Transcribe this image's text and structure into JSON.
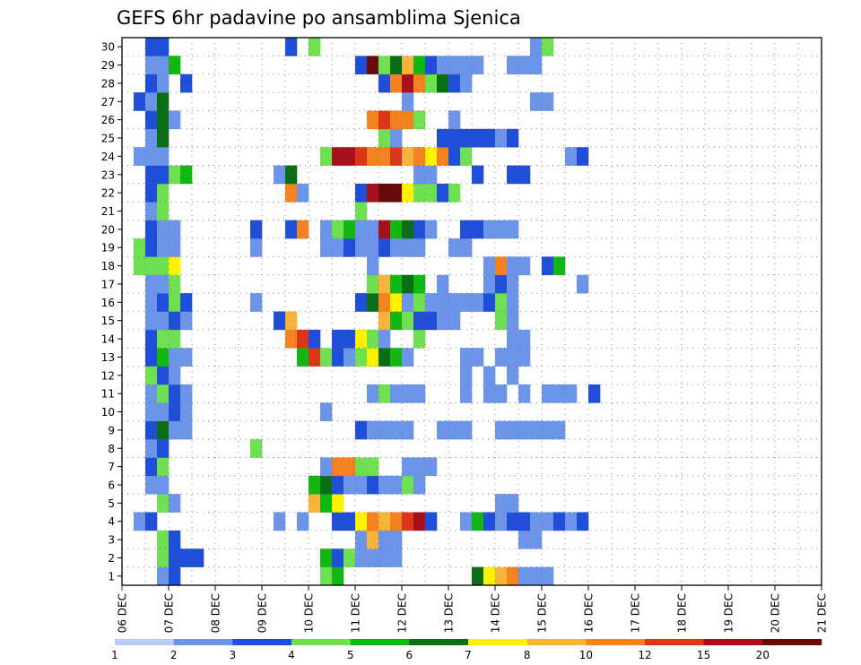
{
  "chart_data": {
    "type": "heatmap",
    "title": "GEFS 6hr padavine po ansamblima Sjenica",
    "xlabel": "",
    "ylabel": "",
    "x_ticks": [
      "06 DEC",
      "07 DEC",
      "08 DEC",
      "09 DEC",
      "10 DEC",
      "11 DEC",
      "12 DEC",
      "13 DEC",
      "14 DEC",
      "15 DEC",
      "16 DEC",
      "17 DEC",
      "18 DEC",
      "19 DEC",
      "20 DEC",
      "21 DEC"
    ],
    "y_ticks": [
      "1",
      "2",
      "3",
      "4",
      "5",
      "6",
      "7",
      "8",
      "9",
      "10",
      "11",
      "12",
      "13",
      "14",
      "15",
      "16",
      "17",
      "18",
      "19",
      "20",
      "21",
      "22",
      "23",
      "24",
      "25",
      "26",
      "27",
      "28",
      "29",
      "30"
    ],
    "x_range_days": [
      0,
      15
    ],
    "step_hours": 6,
    "grid": true,
    "colorbar": {
      "labels": [
        "1",
        "2",
        "3",
        "4",
        "5",
        "6",
        "7",
        "8",
        "10",
        "12",
        "15",
        "20"
      ],
      "colors": [
        "#bccdf5",
        "#6c95ea",
        "#1f4fd8",
        "#6fe052",
        "#12b812",
        "#0a6e14",
        "#fff200",
        "#f8b43a",
        "#f58220",
        "#dc3618",
        "#a80f1c",
        "#6a0a0a"
      ]
    },
    "cells": [
      [
        1,
        1,
        0
      ],
      [
        1,
        1,
        1
      ],
      [
        1,
        2,
        2
      ],
      [
        1,
        15,
        3
      ],
      [
        1,
        16,
        4
      ],
      [
        1,
        28,
        5
      ],
      [
        1,
        29,
        6
      ],
      [
        1,
        30,
        7
      ],
      [
        1,
        31,
        8
      ],
      [
        1,
        32,
        1
      ],
      [
        1,
        33,
        1
      ],
      [
        1,
        34,
        1
      ],
      [
        2,
        1,
        3
      ],
      [
        2,
        2,
        2
      ],
      [
        2,
        3,
        2
      ],
      [
        2,
        4,
        2
      ],
      [
        2,
        15,
        4
      ],
      [
        2,
        16,
        2
      ],
      [
        2,
        17,
        3
      ],
      [
        2,
        18,
        1
      ],
      [
        2,
        19,
        1
      ],
      [
        2,
        20,
        1
      ],
      [
        2,
        21,
        1
      ],
      [
        3,
        1,
        3
      ],
      [
        3,
        2,
        2
      ],
      [
        3,
        18,
        1
      ],
      [
        3,
        19,
        7
      ],
      [
        3,
        20,
        1
      ],
      [
        3,
        21,
        1
      ],
      [
        3,
        32,
        1
      ],
      [
        3,
        33,
        1
      ],
      [
        4,
        -1,
        1
      ],
      [
        4,
        0,
        2
      ],
      [
        4,
        11,
        1
      ],
      [
        4,
        13,
        1
      ],
      [
        4,
        16,
        2
      ],
      [
        4,
        17,
        2
      ],
      [
        4,
        18,
        6
      ],
      [
        4,
        19,
        8
      ],
      [
        4,
        20,
        7
      ],
      [
        4,
        21,
        8
      ],
      [
        4,
        22,
        9
      ],
      [
        4,
        23,
        10
      ],
      [
        4,
        24,
        2
      ],
      [
        4,
        27,
        1
      ],
      [
        4,
        28,
        4
      ],
      [
        4,
        29,
        2
      ],
      [
        4,
        30,
        1
      ],
      [
        4,
        31,
        2
      ],
      [
        4,
        32,
        2
      ],
      [
        4,
        33,
        1
      ],
      [
        4,
        34,
        1
      ],
      [
        4,
        35,
        2
      ],
      [
        4,
        36,
        1
      ],
      [
        4,
        37,
        2
      ],
      [
        5,
        1,
        3
      ],
      [
        5,
        2,
        1
      ],
      [
        5,
        14,
        7
      ],
      [
        5,
        15,
        4
      ],
      [
        5,
        16,
        6
      ],
      [
        5,
        30,
        1
      ],
      [
        5,
        31,
        1
      ],
      [
        6,
        0,
        1
      ],
      [
        6,
        1,
        1
      ],
      [
        6,
        14,
        4
      ],
      [
        6,
        15,
        5
      ],
      [
        6,
        16,
        2
      ],
      [
        6,
        17,
        1
      ],
      [
        6,
        18,
        1
      ],
      [
        6,
        19,
        2
      ],
      [
        6,
        20,
        1
      ],
      [
        6,
        21,
        1
      ],
      [
        6,
        22,
        3
      ],
      [
        6,
        23,
        1
      ],
      [
        7,
        0,
        2
      ],
      [
        7,
        1,
        3
      ],
      [
        7,
        15,
        1
      ],
      [
        7,
        16,
        8
      ],
      [
        7,
        17,
        8
      ],
      [
        7,
        18,
        3
      ],
      [
        7,
        19,
        3
      ],
      [
        7,
        22,
        1
      ],
      [
        7,
        23,
        1
      ],
      [
        7,
        24,
        1
      ],
      [
        8,
        0,
        1
      ],
      [
        8,
        1,
        2
      ],
      [
        8,
        9,
        3
      ],
      [
        9,
        0,
        2
      ],
      [
        9,
        1,
        5
      ],
      [
        9,
        2,
        1
      ],
      [
        9,
        3,
        1
      ],
      [
        9,
        18,
        2
      ],
      [
        9,
        19,
        1
      ],
      [
        9,
        20,
        1
      ],
      [
        9,
        21,
        1
      ],
      [
        9,
        22,
        1
      ],
      [
        9,
        25,
        1
      ],
      [
        9,
        26,
        1
      ],
      [
        9,
        27,
        1
      ],
      [
        9,
        30,
        1
      ],
      [
        9,
        31,
        1
      ],
      [
        9,
        32,
        1
      ],
      [
        9,
        33,
        1
      ],
      [
        9,
        34,
        1
      ],
      [
        9,
        35,
        1
      ],
      [
        10,
        0,
        1
      ],
      [
        10,
        1,
        1
      ],
      [
        10,
        2,
        2
      ],
      [
        10,
        3,
        1
      ],
      [
        10,
        15,
        1
      ],
      [
        11,
        0,
        1
      ],
      [
        11,
        1,
        3
      ],
      [
        11,
        2,
        2
      ],
      [
        11,
        3,
        1
      ],
      [
        11,
        19,
        1
      ],
      [
        11,
        20,
        3
      ],
      [
        11,
        21,
        1
      ],
      [
        11,
        22,
        1
      ],
      [
        11,
        23,
        1
      ],
      [
        11,
        27,
        1
      ],
      [
        11,
        29,
        1
      ],
      [
        11,
        30,
        1
      ],
      [
        11,
        32,
        1
      ],
      [
        11,
        34,
        1
      ],
      [
        11,
        35,
        1
      ],
      [
        11,
        36,
        1
      ],
      [
        11,
        38,
        2
      ],
      [
        12,
        0,
        3
      ],
      [
        12,
        1,
        2
      ],
      [
        12,
        2,
        1
      ],
      [
        12,
        27,
        1
      ],
      [
        12,
        29,
        1
      ],
      [
        12,
        31,
        1
      ],
      [
        13,
        0,
        2
      ],
      [
        13,
        1,
        4
      ],
      [
        13,
        2,
        1
      ],
      [
        13,
        3,
        1
      ],
      [
        13,
        13,
        4
      ],
      [
        13,
        14,
        9
      ],
      [
        13,
        15,
        3
      ],
      [
        13,
        16,
        2
      ],
      [
        13,
        17,
        1
      ],
      [
        13,
        18,
        3
      ],
      [
        13,
        19,
        6
      ],
      [
        13,
        20,
        5
      ],
      [
        13,
        21,
        4
      ],
      [
        13,
        22,
        1
      ],
      [
        13,
        27,
        1
      ],
      [
        13,
        28,
        1
      ],
      [
        13,
        30,
        1
      ],
      [
        13,
        31,
        1
      ],
      [
        13,
        32,
        1
      ],
      [
        14,
        0,
        2
      ],
      [
        14,
        1,
        3
      ],
      [
        14,
        2,
        3
      ],
      [
        14,
        12,
        8
      ],
      [
        14,
        13,
        9
      ],
      [
        14,
        14,
        2
      ],
      [
        14,
        16,
        2
      ],
      [
        14,
        17,
        2
      ],
      [
        14,
        18,
        6
      ],
      [
        14,
        19,
        3
      ],
      [
        14,
        20,
        1
      ],
      [
        14,
        23,
        3
      ],
      [
        14,
        31,
        1
      ],
      [
        14,
        32,
        1
      ],
      [
        15,
        0,
        1
      ],
      [
        15,
        1,
        1
      ],
      [
        15,
        2,
        2
      ],
      [
        15,
        3,
        1
      ],
      [
        15,
        11,
        2
      ],
      [
        15,
        12,
        7
      ],
      [
        15,
        20,
        7
      ],
      [
        15,
        21,
        4
      ],
      [
        15,
        22,
        3
      ],
      [
        15,
        23,
        2
      ],
      [
        15,
        24,
        2
      ],
      [
        15,
        25,
        1
      ],
      [
        15,
        26,
        1
      ],
      [
        15,
        30,
        3
      ],
      [
        15,
        31,
        1
      ],
      [
        16,
        0,
        1
      ],
      [
        16,
        1,
        2
      ],
      [
        16,
        2,
        3
      ],
      [
        16,
        3,
        2
      ],
      [
        16,
        9,
        1
      ],
      [
        16,
        18,
        2
      ],
      [
        16,
        19,
        5
      ],
      [
        16,
        20,
        8
      ],
      [
        16,
        21,
        6
      ],
      [
        16,
        22,
        1
      ],
      [
        16,
        23,
        3
      ],
      [
        16,
        24,
        1
      ],
      [
        16,
        25,
        1
      ],
      [
        16,
        26,
        1
      ],
      [
        16,
        27,
        1
      ],
      [
        16,
        28,
        1
      ],
      [
        16,
        29,
        2
      ],
      [
        16,
        30,
        3
      ],
      [
        16,
        31,
        1
      ],
      [
        17,
        0,
        1
      ],
      [
        17,
        1,
        1
      ],
      [
        17,
        2,
        3
      ],
      [
        17,
        19,
        3
      ],
      [
        17,
        20,
        7
      ],
      [
        17,
        21,
        4
      ],
      [
        17,
        22,
        5
      ],
      [
        17,
        23,
        4
      ],
      [
        17,
        25,
        1
      ],
      [
        17,
        29,
        1
      ],
      [
        17,
        30,
        2
      ],
      [
        17,
        31,
        1
      ],
      [
        17,
        37,
        1
      ],
      [
        18,
        -1,
        3
      ],
      [
        18,
        0,
        3
      ],
      [
        18,
        1,
        3
      ],
      [
        18,
        2,
        6
      ],
      [
        18,
        19,
        1
      ],
      [
        18,
        29,
        1
      ],
      [
        18,
        30,
        8
      ],
      [
        18,
        31,
        1
      ],
      [
        18,
        32,
        1
      ],
      [
        18,
        34,
        2
      ],
      [
        18,
        35,
        4
      ],
      [
        19,
        -1,
        3
      ],
      [
        19,
        0,
        2
      ],
      [
        19,
        1,
        1
      ],
      [
        19,
        2,
        1
      ],
      [
        19,
        9,
        1
      ],
      [
        19,
        15,
        1
      ],
      [
        19,
        16,
        1
      ],
      [
        19,
        17,
        2
      ],
      [
        19,
        18,
        1
      ],
      [
        19,
        19,
        1
      ],
      [
        19,
        20,
        2
      ],
      [
        19,
        21,
        1
      ],
      [
        19,
        22,
        1
      ],
      [
        19,
        23,
        1
      ],
      [
        19,
        26,
        1
      ],
      [
        19,
        27,
        1
      ],
      [
        20,
        0,
        2
      ],
      [
        20,
        1,
        1
      ],
      [
        20,
        2,
        1
      ],
      [
        20,
        9,
        2
      ],
      [
        20,
        12,
        2
      ],
      [
        20,
        13,
        8
      ],
      [
        20,
        15,
        1
      ],
      [
        20,
        16,
        3
      ],
      [
        20,
        17,
        4
      ],
      [
        20,
        18,
        1
      ],
      [
        20,
        19,
        1
      ],
      [
        20,
        20,
        10
      ],
      [
        20,
        21,
        4
      ],
      [
        20,
        22,
        5
      ],
      [
        20,
        23,
        2
      ],
      [
        20,
        24,
        1
      ],
      [
        20,
        27,
        2
      ],
      [
        20,
        28,
        2
      ],
      [
        20,
        29,
        1
      ],
      [
        20,
        30,
        1
      ],
      [
        20,
        31,
        1
      ],
      [
        21,
        0,
        1
      ],
      [
        21,
        1,
        3
      ],
      [
        21,
        18,
        3
      ],
      [
        22,
        0,
        2
      ],
      [
        22,
        1,
        3
      ],
      [
        22,
        12,
        8
      ],
      [
        22,
        13,
        1
      ],
      [
        22,
        18,
        2
      ],
      [
        22,
        19,
        10
      ],
      [
        22,
        20,
        11
      ],
      [
        22,
        21,
        11
      ],
      [
        22,
        22,
        6
      ],
      [
        22,
        23,
        3
      ],
      [
        22,
        24,
        3
      ],
      [
        22,
        25,
        2
      ],
      [
        22,
        26,
        3
      ],
      [
        23,
        0,
        2
      ],
      [
        23,
        1,
        2
      ],
      [
        23,
        2,
        3
      ],
      [
        23,
        3,
        4
      ],
      [
        23,
        11,
        1
      ],
      [
        23,
        12,
        5
      ],
      [
        23,
        23,
        1
      ],
      [
        23,
        24,
        1
      ],
      [
        23,
        28,
        2
      ],
      [
        23,
        31,
        2
      ],
      [
        23,
        32,
        2
      ],
      [
        24,
        -1,
        1
      ],
      [
        24,
        0,
        1
      ],
      [
        24,
        1,
        1
      ],
      [
        24,
        15,
        3
      ],
      [
        24,
        16,
        10
      ],
      [
        24,
        17,
        10
      ],
      [
        24,
        18,
        9
      ],
      [
        24,
        19,
        8
      ],
      [
        24,
        20,
        8
      ],
      [
        24,
        21,
        9
      ],
      [
        24,
        22,
        7
      ],
      [
        24,
        23,
        8
      ],
      [
        24,
        24,
        6
      ],
      [
        24,
        25,
        8
      ],
      [
        24,
        26,
        2
      ],
      [
        24,
        27,
        3
      ],
      [
        24,
        36,
        1
      ],
      [
        24,
        37,
        2
      ],
      [
        25,
        0,
        1
      ],
      [
        25,
        1,
        5
      ],
      [
        25,
        20,
        3
      ],
      [
        25,
        21,
        1
      ],
      [
        25,
        25,
        2
      ],
      [
        25,
        26,
        2
      ],
      [
        25,
        27,
        2
      ],
      [
        25,
        28,
        2
      ],
      [
        25,
        29,
        2
      ],
      [
        25,
        30,
        1
      ],
      [
        25,
        31,
        2
      ],
      [
        26,
        0,
        2
      ],
      [
        26,
        1,
        5
      ],
      [
        26,
        2,
        1
      ],
      [
        26,
        19,
        8
      ],
      [
        26,
        20,
        9
      ],
      [
        26,
        21,
        8
      ],
      [
        26,
        22,
        8
      ],
      [
        26,
        23,
        3
      ],
      [
        26,
        26,
        1
      ],
      [
        27,
        -1,
        2
      ],
      [
        27,
        0,
        1
      ],
      [
        27,
        1,
        5
      ],
      [
        27,
        22,
        1
      ],
      [
        27,
        33,
        1
      ],
      [
        27,
        34,
        1
      ],
      [
        28,
        0,
        2
      ],
      [
        28,
        1,
        1
      ],
      [
        28,
        3,
        2
      ],
      [
        28,
        20,
        2
      ],
      [
        28,
        21,
        8
      ],
      [
        28,
        22,
        10
      ],
      [
        28,
        23,
        8
      ],
      [
        28,
        24,
        3
      ],
      [
        28,
        25,
        5
      ],
      [
        28,
        26,
        2
      ],
      [
        28,
        27,
        1
      ],
      [
        29,
        0,
        1
      ],
      [
        29,
        1,
        1
      ],
      [
        29,
        2,
        4
      ],
      [
        29,
        18,
        2
      ],
      [
        29,
        19,
        11
      ],
      [
        29,
        20,
        3
      ],
      [
        29,
        21,
        5
      ],
      [
        29,
        22,
        7
      ],
      [
        29,
        23,
        4
      ],
      [
        29,
        24,
        2
      ],
      [
        29,
        25,
        1
      ],
      [
        29,
        26,
        1
      ],
      [
        29,
        27,
        1
      ],
      [
        29,
        28,
        1
      ],
      [
        29,
        31,
        1
      ],
      [
        29,
        32,
        1
      ],
      [
        29,
        33,
        1
      ],
      [
        30,
        0,
        2
      ],
      [
        30,
        1,
        2
      ],
      [
        30,
        12,
        2
      ],
      [
        30,
        14,
        3
      ],
      [
        30,
        33,
        1
      ],
      [
        30,
        34,
        3
      ]
    ]
  }
}
